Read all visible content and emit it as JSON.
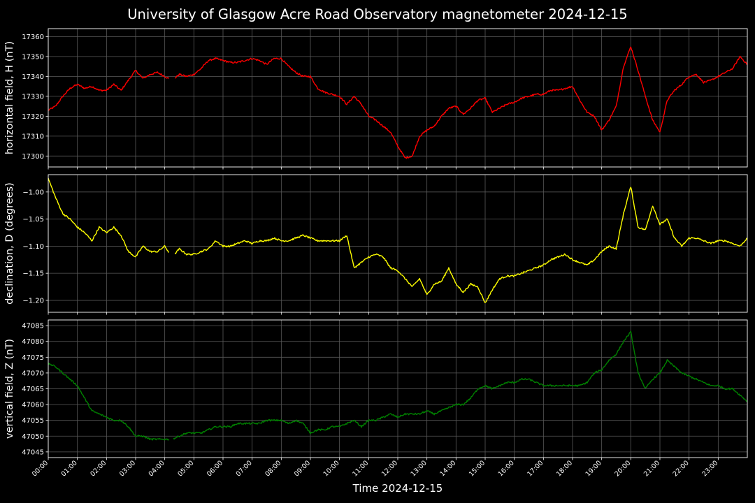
{
  "figure": {
    "title": "University of Glasgow Acre Road Observatory magnetometer 2024-12-15",
    "xlabel": "Time 2024-12-15"
  },
  "chart_data": [
    {
      "type": "line",
      "ylabel": "horizontal field, H (nT)",
      "color": "#ff0000",
      "ylim": [
        17294.5,
        17364
      ],
      "yticks": [
        17300,
        17310,
        17320,
        17330,
        17340,
        17350,
        17360
      ],
      "ytick_labels": [
        "17300",
        "17310",
        "17320",
        "17330",
        "17340",
        "17350",
        "17360"
      ],
      "xlim": [
        0,
        24
      ],
      "xticks": [
        "00:00",
        "01:00",
        "02:00",
        "03:00",
        "04:00",
        "05:00",
        "06:00",
        "07:00",
        "08:00",
        "09:00",
        "10:00",
        "11:00",
        "12:00",
        "13:00",
        "14:00",
        "15:00",
        "16:00",
        "17:00",
        "18:00",
        "19:00",
        "20:00",
        "21:00",
        "22:00",
        "23:00"
      ],
      "grid": true,
      "x": [
        0,
        0.25,
        0.5,
        0.75,
        1,
        1.25,
        1.5,
        1.75,
        2,
        2.25,
        2.5,
        2.75,
        3,
        3.25,
        3.5,
        3.75,
        4,
        4.25,
        4.5,
        4.75,
        5,
        5.25,
        5.5,
        5.75,
        6,
        6.25,
        6.5,
        6.75,
        7,
        7.25,
        7.5,
        7.75,
        8,
        8.25,
        8.5,
        8.75,
        9,
        9.25,
        9.5,
        9.75,
        10,
        10.25,
        10.5,
        10.75,
        11,
        11.25,
        11.5,
        11.75,
        12,
        12.25,
        12.5,
        12.75,
        13,
        13.25,
        13.5,
        13.75,
        14,
        14.25,
        14.5,
        14.75,
        15,
        15.25,
        15.5,
        15.75,
        16,
        16.25,
        16.5,
        16.75,
        17,
        17.25,
        17.5,
        17.75,
        18,
        18.25,
        18.5,
        18.75,
        19,
        19.25,
        19.5,
        19.75,
        20,
        20.25,
        20.5,
        20.75,
        21,
        21.25,
        21.5,
        21.75,
        22,
        22.25,
        22.5,
        22.75,
        23,
        23.25,
        23.5,
        23.75,
        24
      ],
      "gaps": [
        [
          4.15,
          4.35
        ]
      ],
      "y": [
        17323,
        17325,
        17330,
        17334,
        17336,
        17334,
        17335,
        17333,
        17333,
        17336,
        17333,
        17338,
        17343,
        17339,
        17341,
        17342,
        17340,
        17338,
        17341,
        17340,
        17341,
        17344,
        17348,
        17349,
        17348,
        17347,
        17347,
        17348,
        17349,
        17348,
        17346,
        17349,
        17349,
        17345,
        17342,
        17340,
        17340,
        17334,
        17332,
        17331,
        17330,
        17326,
        17330,
        17326,
        17320,
        17318,
        17315,
        17312,
        17305,
        17299,
        17300,
        17310,
        17313,
        17315,
        17320,
        17324,
        17325,
        17321,
        17324,
        17328,
        17329,
        17322,
        17324,
        17326,
        17327,
        17329,
        17330,
        17331,
        17331,
        17333,
        17333,
        17334,
        17335,
        17328,
        17322,
        17320,
        17313,
        17318,
        17325,
        17345,
        17355,
        17343,
        17330,
        17318,
        17312,
        17328,
        17333,
        17336,
        17340,
        17341,
        17337,
        17338,
        17340,
        17342,
        17344,
        17350,
        17346
      ]
    },
    {
      "type": "line",
      "ylabel": "declination, D (degrees)",
      "color": "#ffff00",
      "ylim": [
        -1.222,
        -0.968
      ],
      "yticks": [
        -1.2,
        -1.15,
        -1.1,
        -1.05,
        -1.0
      ],
      "ytick_labels": [
        "−1.20",
        "−1.15",
        "−1.10",
        "−1.05",
        "−1.00"
      ],
      "xlim": [
        0,
        24
      ],
      "grid": true,
      "x": [
        0,
        0.25,
        0.5,
        0.75,
        1,
        1.25,
        1.5,
        1.75,
        2,
        2.25,
        2.5,
        2.75,
        3,
        3.25,
        3.5,
        3.75,
        4,
        4.25,
        4.5,
        4.75,
        5,
        5.25,
        5.5,
        5.75,
        6,
        6.25,
        6.5,
        6.75,
        7,
        7.25,
        7.5,
        7.75,
        8,
        8.25,
        8.5,
        8.75,
        9,
        9.25,
        9.5,
        9.75,
        10,
        10.25,
        10.5,
        10.75,
        11,
        11.25,
        11.5,
        11.75,
        12,
        12.25,
        12.5,
        12.75,
        13,
        13.25,
        13.5,
        13.75,
        14,
        14.25,
        14.5,
        14.75,
        15,
        15.25,
        15.5,
        15.75,
        16,
        16.25,
        16.5,
        16.75,
        17,
        17.25,
        17.5,
        17.75,
        18,
        18.25,
        18.5,
        18.75,
        19,
        19.25,
        19.5,
        19.75,
        20,
        20.25,
        20.5,
        20.75,
        21,
        21.25,
        21.5,
        21.75,
        22,
        22.25,
        22.5,
        22.75,
        23,
        23.25,
        23.5,
        23.75,
        24
      ],
      "gaps": [
        [
          4.15,
          4.35
        ]
      ],
      "y": [
        -0.975,
        -1.01,
        -1.04,
        -1.05,
        -1.065,
        -1.075,
        -1.09,
        -1.065,
        -1.075,
        -1.065,
        -1.08,
        -1.11,
        -1.12,
        -1.1,
        -1.11,
        -1.11,
        -1.1,
        -1.12,
        -1.105,
        -1.115,
        -1.115,
        -1.11,
        -1.105,
        -1.09,
        -1.1,
        -1.1,
        -1.095,
        -1.09,
        -1.095,
        -1.09,
        -1.09,
        -1.085,
        -1.09,
        -1.09,
        -1.085,
        -1.08,
        -1.085,
        -1.09,
        -1.09,
        -1.09,
        -1.09,
        -1.08,
        -1.14,
        -1.13,
        -1.12,
        -1.115,
        -1.12,
        -1.14,
        -1.145,
        -1.16,
        -1.175,
        -1.16,
        -1.19,
        -1.17,
        -1.165,
        -1.14,
        -1.17,
        -1.185,
        -1.17,
        -1.175,
        -1.205,
        -1.18,
        -1.16,
        -1.155,
        -1.155,
        -1.15,
        -1.145,
        -1.14,
        -1.135,
        -1.125,
        -1.12,
        -1.115,
        -1.125,
        -1.13,
        -1.135,
        -1.125,
        -1.11,
        -1.1,
        -1.105,
        -1.04,
        -0.99,
        -1.065,
        -1.07,
        -1.025,
        -1.06,
        -1.05,
        -1.085,
        -1.1,
        -1.085,
        -1.085,
        -1.09,
        -1.095,
        -1.09,
        -1.09,
        -1.095,
        -1.1,
        -1.085
      ]
    },
    {
      "type": "line",
      "ylabel": "vertical field, Z (nT)",
      "color": "#008000",
      "ylim": [
        47043.2,
        47086.8
      ],
      "yticks": [
        47045,
        47050,
        47055,
        47060,
        47065,
        47070,
        47075,
        47080,
        47085
      ],
      "ytick_labels": [
        "47045",
        "47050",
        "47055",
        "47060",
        "47065",
        "47070",
        "47075",
        "47080",
        "47085"
      ],
      "xlim": [
        0,
        24
      ],
      "grid": true,
      "x": [
        0,
        0.25,
        0.5,
        0.75,
        1,
        1.25,
        1.5,
        1.75,
        2,
        2.25,
        2.5,
        2.75,
        3,
        3.25,
        3.5,
        3.75,
        4,
        4.25,
        4.5,
        4.75,
        5,
        5.25,
        5.5,
        5.75,
        6,
        6.25,
        6.5,
        6.75,
        7,
        7.25,
        7.5,
        7.75,
        8,
        8.25,
        8.5,
        8.75,
        9,
        9.25,
        9.5,
        9.75,
        10,
        10.25,
        10.5,
        10.75,
        11,
        11.25,
        11.5,
        11.75,
        12,
        12.25,
        12.5,
        12.75,
        13,
        13.25,
        13.5,
        13.75,
        14,
        14.25,
        14.5,
        14.75,
        15,
        15.25,
        15.5,
        15.75,
        16,
        16.25,
        16.5,
        16.75,
        17,
        17.25,
        17.5,
        17.75,
        18,
        18.25,
        18.5,
        18.75,
        19,
        19.25,
        19.5,
        19.75,
        20,
        20.25,
        20.5,
        20.75,
        21,
        21.25,
        21.5,
        21.75,
        22,
        22.25,
        22.5,
        22.75,
        23,
        23.25,
        23.5,
        23.75,
        24
      ],
      "gaps": [
        [
          4.15,
          4.3
        ]
      ],
      "y": [
        47073,
        47072,
        47070,
        47068,
        47066,
        47062,
        47058,
        47057,
        47056,
        47055,
        47055,
        47053,
        47050,
        47050,
        47049,
        47049,
        47049,
        47049,
        47050,
        47051,
        47051,
        47051,
        47052,
        47053,
        47053,
        47053,
        47054,
        47054,
        47054,
        47054,
        47055,
        47055,
        47055,
        47054,
        47055,
        47054,
        47051,
        47052,
        47052,
        47053,
        47053,
        47054,
        47055,
        47053,
        47055,
        47055,
        47056,
        47057,
        47056,
        47057,
        47057,
        47057,
        47058,
        47057,
        47058,
        47059,
        47060,
        47060,
        47062,
        47065,
        47066,
        47065,
        47066,
        47067,
        47067,
        47068,
        47068,
        47067,
        47066,
        47066,
        47066,
        47066,
        47066,
        47066,
        47067,
        47070,
        47071,
        47074,
        47076,
        47080,
        47083,
        47070,
        47065,
        47068,
        47070,
        47074,
        47072,
        47070,
        47069,
        47068,
        47067,
        47066,
        47066,
        47065,
        47065,
        47063,
        47061
      ]
    }
  ]
}
